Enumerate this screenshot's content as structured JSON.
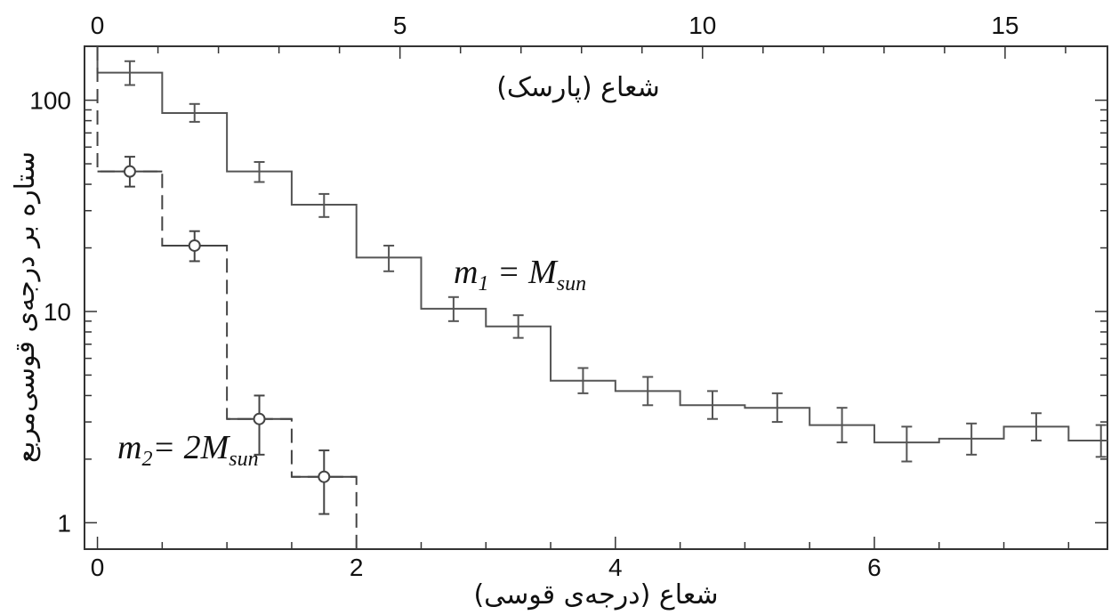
{
  "chart_data": {
    "type": "line",
    "xlabel": "شعاع (درجه‌ی قوسی)",
    "top_xlabel": "شعاع (پارسک)",
    "ylabel": "ستاره بر درجه‌ی قوسی‌مربع",
    "xlim": [
      -0.1,
      7.8
    ],
    "ylim": [
      0.75,
      180
    ],
    "yscale": "log",
    "x_ticks": [
      0,
      2,
      4,
      6
    ],
    "y_ticks": [
      {
        "value": 1,
        "label": "1"
      },
      {
        "value": 10,
        "label": "10"
      },
      {
        "value": 100,
        "label": "100"
      }
    ],
    "top_axis": {
      "unit": "pc",
      "ticks": [
        {
          "value": 0,
          "label": "0"
        },
        {
          "value": 5,
          "label": "5"
        },
        {
          "value": 10,
          "label": "10"
        },
        {
          "value": 15,
          "label": "15"
        }
      ]
    },
    "grid": false,
    "series": [
      {
        "label_main": "m",
        "label_sub": "1",
        "label_rest": " = M",
        "label_sub2": "sun",
        "style": "solid-step",
        "marker": "none",
        "color": "#555555",
        "bin_edges": [
          0,
          0.5,
          1,
          1.5,
          2,
          2.5,
          3,
          3.5,
          4,
          4.5,
          5,
          5.5,
          6,
          6.5,
          7,
          7.5,
          7.85
        ],
        "x": [
          0.25,
          0.75,
          1.25,
          1.75,
          2.25,
          2.75,
          3.25,
          3.75,
          4.25,
          4.75,
          5.25,
          5.75,
          6.25,
          6.75,
          7.25,
          7.75
        ],
        "y": [
          135,
          87,
          46,
          32,
          18,
          10.3,
          8.5,
          4.7,
          4.2,
          3.6,
          3.5,
          2.9,
          2.4,
          2.5,
          2.85,
          2.45
        ],
        "y_err_low": [
          17,
          8,
          5,
          4,
          2.5,
          1.3,
          1.0,
          0.6,
          0.6,
          0.5,
          0.5,
          0.5,
          0.45,
          0.4,
          0.4,
          0.4
        ],
        "y_err_high": [
          18,
          9,
          5,
          4,
          2.5,
          1.4,
          1.1,
          0.7,
          0.7,
          0.6,
          0.6,
          0.6,
          0.45,
          0.45,
          0.45,
          0.45
        ]
      },
      {
        "label_main": "m",
        "label_sub": "2",
        "label_rest": "= 2M",
        "label_sub2": "sun",
        "style": "dashed-step",
        "marker": "circle",
        "color": "#444444",
        "bin_edges": [
          0,
          0.5,
          1,
          1.5,
          2
        ],
        "x": [
          0.25,
          0.75,
          1.25,
          1.75
        ],
        "y": [
          46,
          20.5,
          3.1,
          1.65
        ],
        "y_err_low": [
          7,
          3.2,
          1.0,
          0.55
        ],
        "y_err_high": [
          8,
          3.5,
          0.9,
          0.55
        ]
      }
    ]
  }
}
